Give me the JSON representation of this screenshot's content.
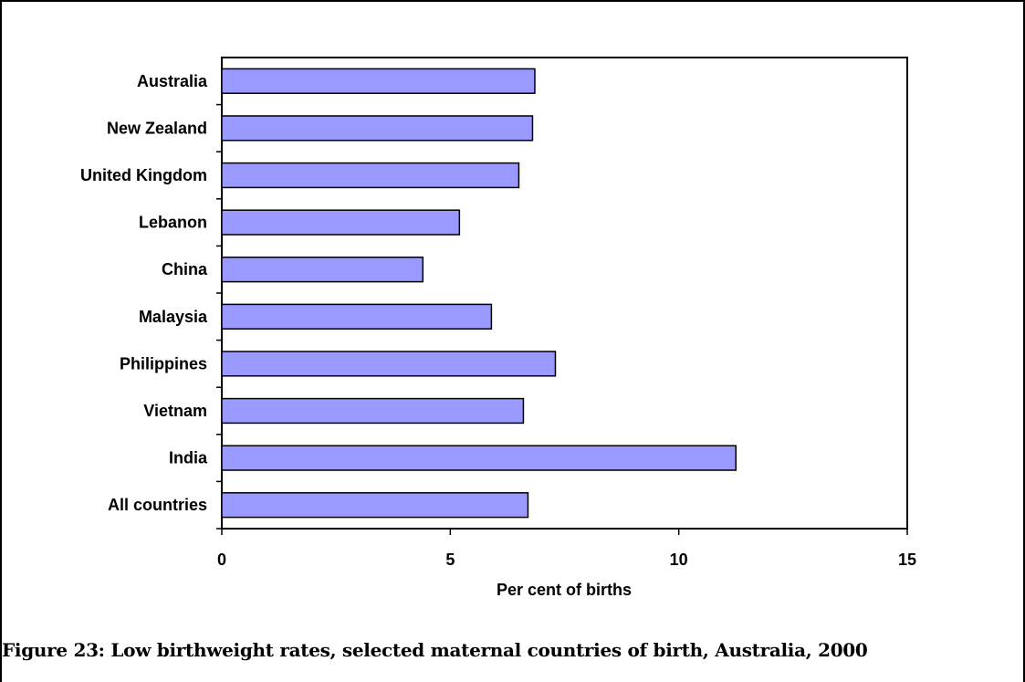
{
  "figure": {
    "caption": "Figure 23: Low birthweight rates, selected maternal countries of birth, Australia, 2000"
  },
  "colors": {
    "bar_fill": "#9999ff",
    "bar_stroke": "#000000",
    "axis": "#000000"
  },
  "chart_data": {
    "type": "bar",
    "orientation": "horizontal",
    "title": "",
    "xlabel": "Per cent of births",
    "ylabel": "",
    "xlim": [
      0,
      15
    ],
    "xticks": [
      0,
      5,
      10,
      15
    ],
    "grid": false,
    "legend": "none",
    "categories": [
      "Australia",
      "New Zealand",
      "United Kingdom",
      "Lebanon",
      "China",
      "Malaysia",
      "Philippines",
      "Vietnam",
      "India",
      "All countries"
    ],
    "values": [
      6.85,
      6.8,
      6.5,
      5.2,
      4.4,
      5.9,
      7.3,
      6.6,
      11.25,
      6.7
    ]
  }
}
